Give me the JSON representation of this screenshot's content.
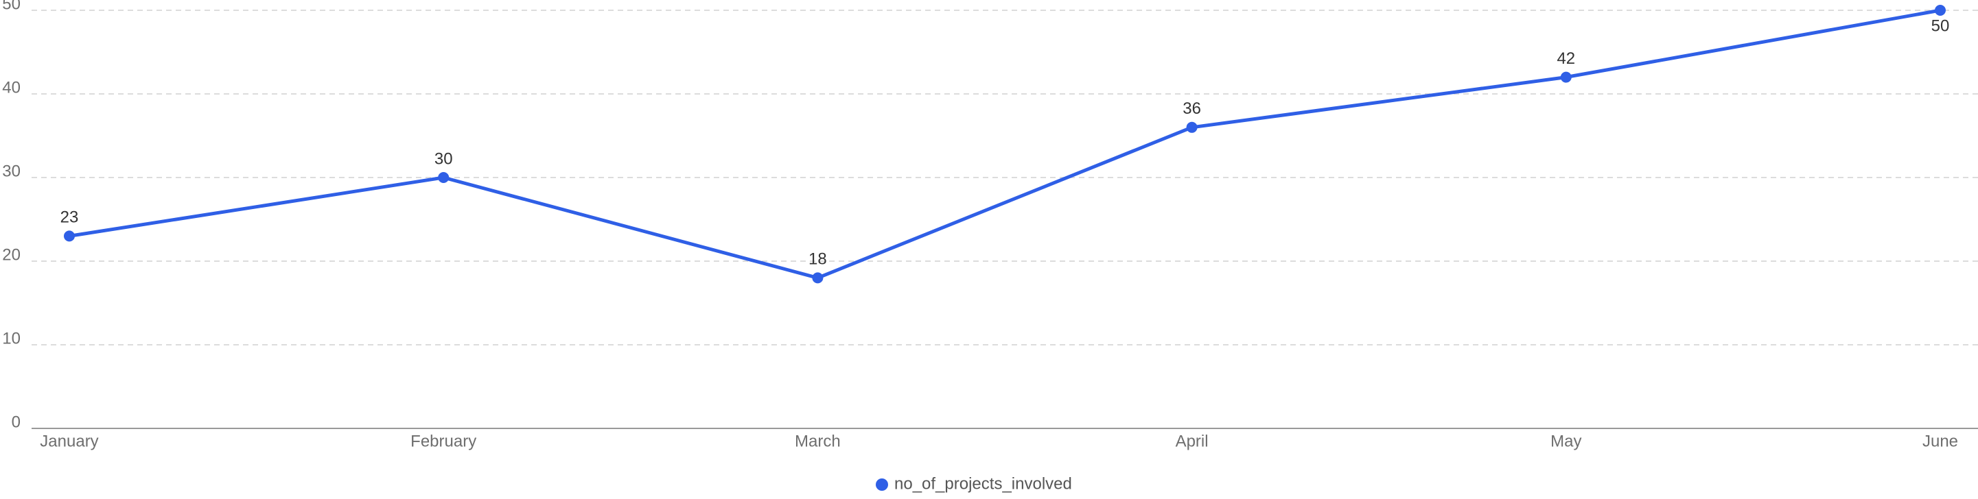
{
  "chart_data": {
    "type": "line",
    "categories": [
      "January",
      "February",
      "March",
      "April",
      "May",
      "June"
    ],
    "series": [
      {
        "name": "no_of_projects_involved",
        "color": "#2f5fe6",
        "values": [
          23,
          30,
          18,
          36,
          42,
          50
        ]
      }
    ],
    "ylim": [
      0,
      50
    ],
    "yticks": [
      0,
      10,
      20,
      30,
      40,
      50
    ],
    "grid": true,
    "legend": "bottom"
  }
}
